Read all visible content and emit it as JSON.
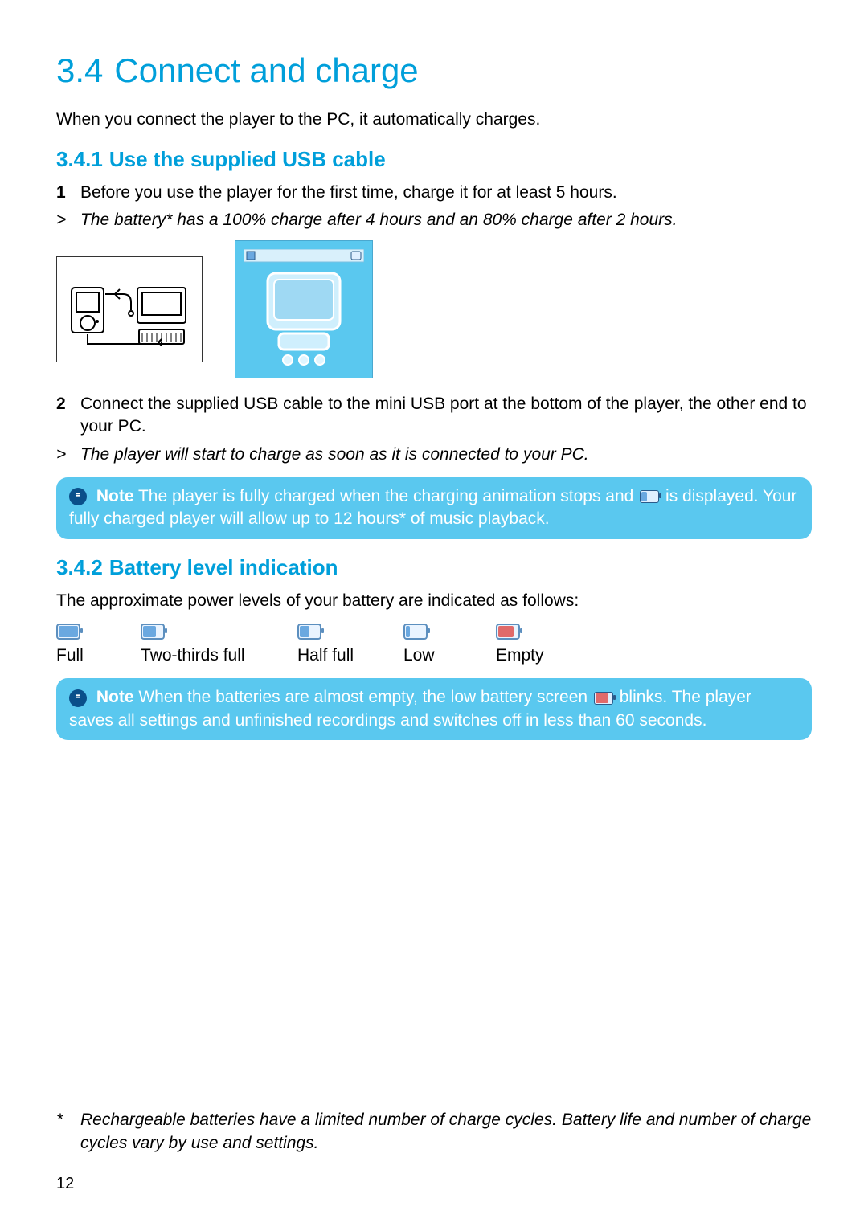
{
  "colors": {
    "accent": "#009fda",
    "noteBg": "#5ac8ef",
    "noteText": "#ffffff",
    "noteIconBg": "#0a4f8a",
    "textColor": "#000000",
    "pageBg": "#ffffff",
    "battBorder": "#5c8fbf",
    "battBg": "#eaf4ff",
    "fillBlue": "#6aa8e0",
    "fillRed": "#e06a6a"
  },
  "typography": {
    "h1_fontsize": 42,
    "h2_fontsize": 26,
    "body_fontsize": 21,
    "font_family": "Gill Sans"
  },
  "section": {
    "number": "3.4",
    "title": "Connect and charge",
    "intro": "When you connect the player to the PC, it automatically charges."
  },
  "sub1": {
    "number": "3.4.1",
    "title": "Use the supplied USB cable",
    "step1_num": "1",
    "step1_text": "Before you use the player for the first time, charge it for at least 5 hours.",
    "result1_marker": ">",
    "result1_text": "The battery* has a 100% charge after 4 hours and an 80% charge after 2 hours.",
    "step2_num": "2",
    "step2_text": "Connect the supplied USB cable to the mini USB port at the bottom of the player, the other end to your PC.",
    "result2_marker": ">",
    "result2_text": "The player will start to charge as soon as it is connected to your PC.",
    "note_label": "Note",
    "note_text_a": "The player is fully charged when the charging animation stops and ",
    "note_text_b": " is displayed. Your fully charged player will allow up to 12 hours* of music playback.",
    "note_icon_fill_pct": 35,
    "note_icon_fill_color": "#6aa8e0"
  },
  "sub2": {
    "number": "3.4.2",
    "title": "Battery level indication",
    "intro": "The approximate power levels of your battery are indicated as follows:",
    "levels": [
      {
        "label": "Full",
        "fill_pct": 100,
        "fill_color": "#6aa8e0"
      },
      {
        "label": "Two-thirds full",
        "fill_pct": 66,
        "fill_color": "#6aa8e0"
      },
      {
        "label": "Half full",
        "fill_pct": 50,
        "fill_color": "#6aa8e0"
      },
      {
        "label": "Low",
        "fill_pct": 20,
        "fill_color": "#6aa8e0"
      },
      {
        "label": "Empty",
        "fill_pct": 80,
        "fill_color": "#e06a6a"
      }
    ],
    "note_label": "Note",
    "note_text_a": "When the batteries are almost empty, the low battery screen ",
    "note_text_b": " blinks. The player saves all settings and unfinished recordings and switches off in less than 60 seconds.",
    "note_icon_fill_pct": 80,
    "note_icon_fill_color": "#e06a6a"
  },
  "footnote": {
    "marker": "*",
    "text": "Rechargeable batteries have a limited number of charge cycles. Battery life and number of charge cycles vary by use and settings."
  },
  "pageNumber": "12"
}
